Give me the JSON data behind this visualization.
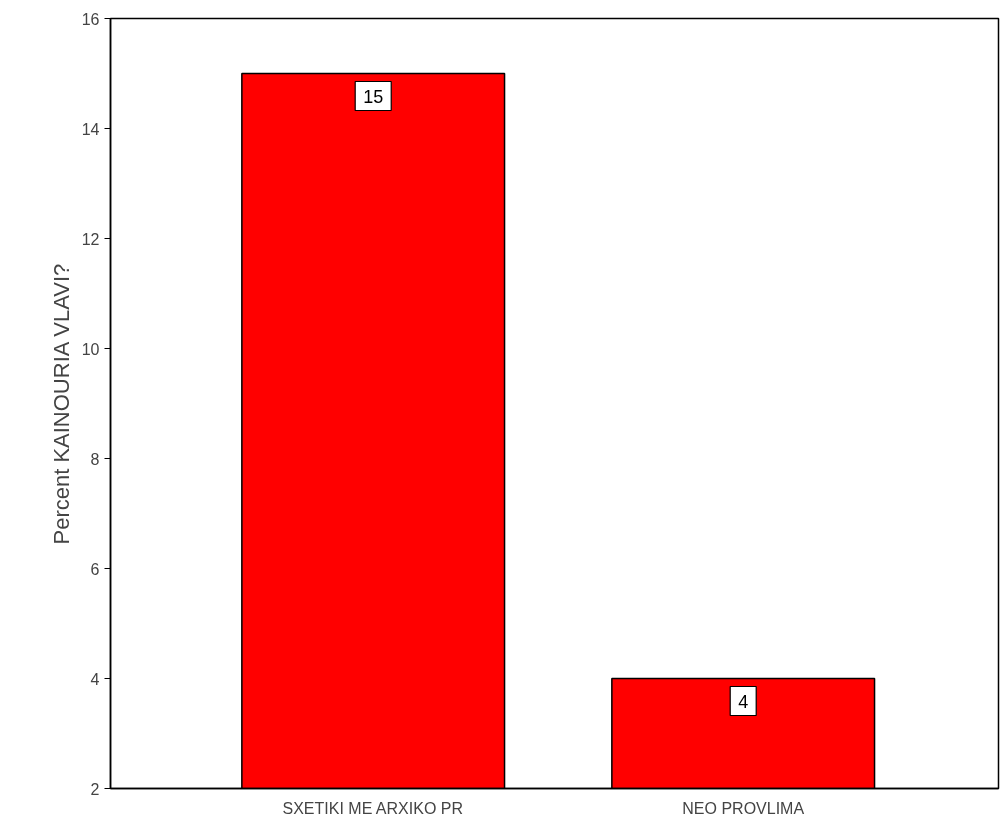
{
  "chart_data": {
    "type": "bar",
    "ylabel": "Percent KAINOURIA VLAVI?",
    "categories": [
      "SXETIKI ME ARXIKO PR",
      "NEO PROVLIMA"
    ],
    "values": [
      15,
      4
    ],
    "color": "#ff0000",
    "ylim": [
      2,
      16
    ],
    "yticks": [
      2,
      4,
      6,
      8,
      10,
      12,
      14,
      16
    ],
    "data_labels": true,
    "grid": false
  }
}
